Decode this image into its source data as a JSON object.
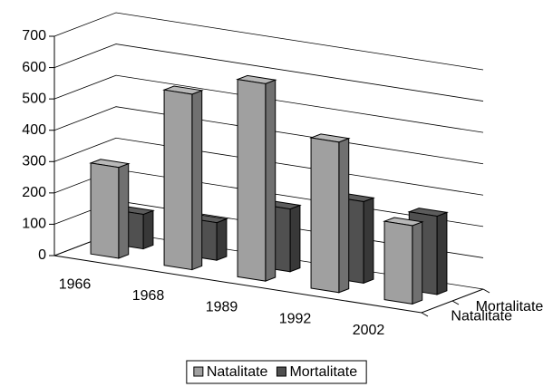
{
  "chart_data": {
    "type": "bar3d",
    "categories": [
      "1966",
      "1968",
      "1989",
      "1992",
      "2002"
    ],
    "series": [
      {
        "name": "Natalitate",
        "color": "#a0a0a0",
        "values": [
          290,
          560,
          630,
          480,
          250
        ]
      },
      {
        "name": "Mortalitate",
        "color": "#505050",
        "values": [
          110,
          120,
          200,
          260,
          250
        ]
      }
    ],
    "ylim": [
      0,
      700
    ],
    "yticks": [
      0,
      100,
      200,
      300,
      400,
      500,
      600,
      700
    ],
    "grid": true
  }
}
